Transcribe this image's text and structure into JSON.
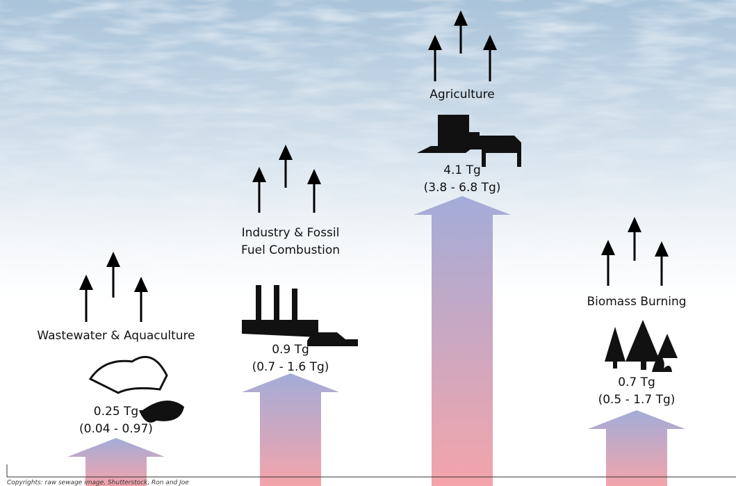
{
  "sources": [
    {
      "label_lines": [
        "Wastewater & Aquaculture"
      ],
      "amount": "0.25 Tg",
      "range": "(0.04 - 0.97)"
    },
    {
      "label_lines": [
        "Industry & Fossil",
        "Fuel Combustion"
      ],
      "amount": "0.9 Tg",
      "range": "(0.7 - 1.6 Tg)"
    },
    {
      "label_lines": [
        "Agriculture"
      ],
      "amount": "4.1 Tg",
      "range": "(3.8 - 6.8 Tg)"
    },
    {
      "label_lines": [
        "Biomass Burning"
      ],
      "amount": "0.7 Tg",
      "range": "(0.5 - 1.7 Tg)"
    }
  ],
  "footer": "Copyrights: raw sewage image, Shutterstock, Ron and Joe"
}
